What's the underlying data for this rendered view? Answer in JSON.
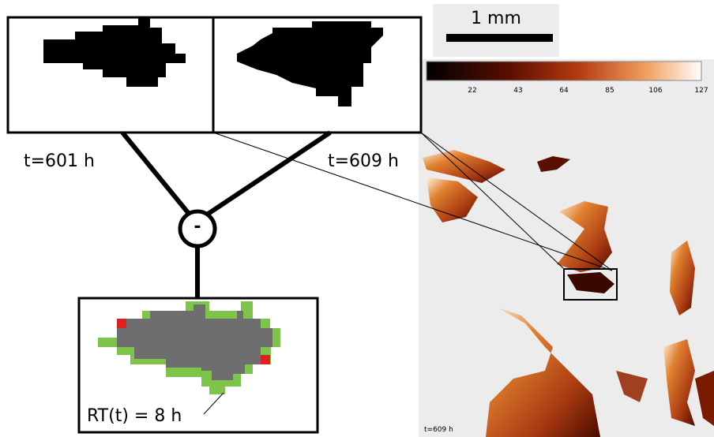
{
  "scale_bar": {
    "label": "1 mm"
  },
  "colorbar": {
    "ticks": [
      22,
      43,
      64,
      85,
      106,
      127
    ]
  },
  "snapshots": [
    {
      "label": "t=601 h"
    },
    {
      "label": "t=609 h"
    }
  ],
  "operator": {
    "label": "-"
  },
  "result": {
    "label": "RT(t) = 8 h"
  },
  "image": {
    "timestamp": "t=609 h"
  }
}
